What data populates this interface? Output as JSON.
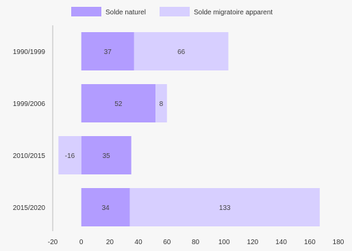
{
  "chart_data": {
    "type": "bar",
    "orientation": "horizontal",
    "stacked": true,
    "title": "",
    "xlabel": "",
    "ylabel": "",
    "categories": [
      "1990/1999",
      "1999/2006",
      "2010/2015",
      "2015/2020"
    ],
    "series": [
      {
        "name": "Solde naturel",
        "values": [
          37,
          52,
          35,
          34
        ],
        "color": "#b29cff"
      },
      {
        "name": "Solde migratoire apparent",
        "values": [
          66,
          8,
          -16,
          133
        ],
        "color": "#d7cfff"
      }
    ],
    "xlim": [
      -20,
      180
    ],
    "xticks": [
      -20,
      0,
      20,
      40,
      60,
      80,
      100,
      120,
      140,
      160,
      180
    ],
    "grid": false,
    "legend": "top-center"
  }
}
